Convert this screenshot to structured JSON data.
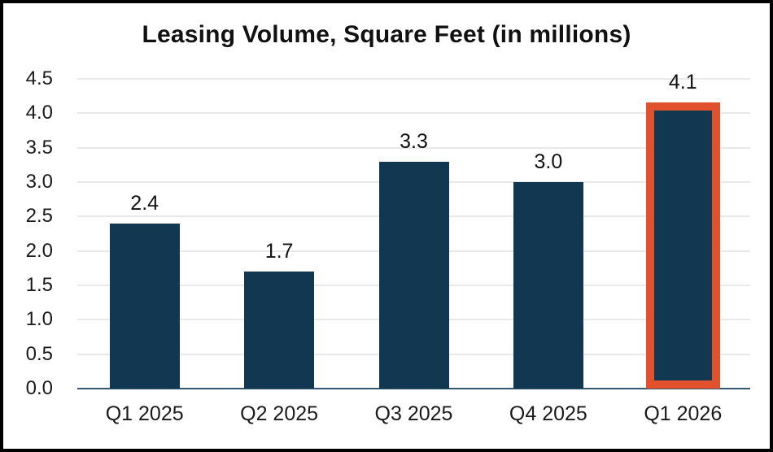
{
  "chart_data": {
    "type": "bar",
    "title": "Leasing Volume, Square Feet (in millions)",
    "categories": [
      "Q1 2025",
      "Q2 2025",
      "Q3 2025",
      "Q4 2025",
      "Q1 2026"
    ],
    "values": [
      2.4,
      1.7,
      3.3,
      3.0,
      4.1
    ],
    "value_labels": [
      "2.4",
      "1.7",
      "3.3",
      "3.0",
      "4.1"
    ],
    "xlabel": "",
    "ylabel": "",
    "ylim": [
      0,
      4.5
    ],
    "ytick_step": 0.5,
    "yticks": [
      "0.0",
      "0.5",
      "1.0",
      "1.5",
      "2.0",
      "2.5",
      "3.0",
      "3.5",
      "4.0",
      "4.5"
    ],
    "grid": "horizontal gridlines on",
    "legend": "none",
    "colors": {
      "bar": "#113850",
      "highlight_border": "#E2512E",
      "gridline": "#E9E9E9",
      "axis_line": "#31586E",
      "text": "#1A1A1A",
      "frame_border": "#000000",
      "background": "#FFFFFF"
    },
    "highlight": {
      "index": 4,
      "note": "last bar outlined in orange"
    }
  }
}
